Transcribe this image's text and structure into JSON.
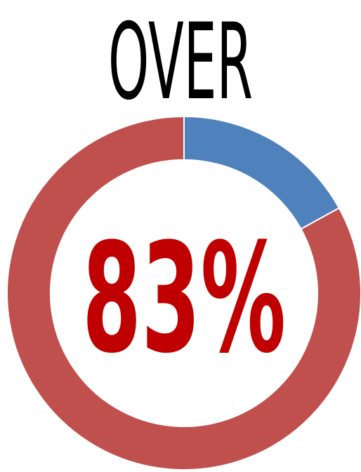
{
  "headline": "OVER",
  "center_label": "83%",
  "colors": {
    "headline": "#000000",
    "center_label": "#C00000",
    "ring_major": "#C0504D",
    "ring_minor": "#4F81BD",
    "background": "#FFFFFF"
  },
  "chart_data": {
    "type": "pie",
    "style": "donut",
    "title": "",
    "categories": [
      "",
      ""
    ],
    "values": [
      17,
      83
    ],
    "colors": [
      "#4F81BD",
      "#C0504D"
    ],
    "legend": "none"
  }
}
